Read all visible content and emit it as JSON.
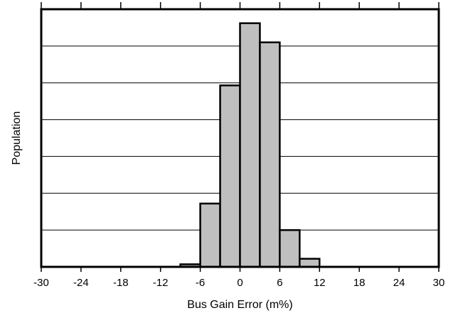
{
  "chart_data": {
    "type": "bar",
    "title": "",
    "xlabel": "Bus Gain Error (m%)",
    "ylabel": "Population",
    "xlim": [
      -30,
      30
    ],
    "ylim": [
      0,
      7
    ],
    "x_ticks": [
      -30,
      -24,
      -18,
      -12,
      -6,
      0,
      6,
      12,
      18,
      24,
      30
    ],
    "x_tick_labels": [
      "-30",
      "-24",
      "-18",
      "-12",
      "-6",
      "0",
      "6",
      "12",
      "18",
      "24",
      "30"
    ],
    "y_gridlines": [
      1,
      2,
      3,
      4,
      5,
      6
    ],
    "grid": "horizontal",
    "bin_width": 3,
    "bins": [
      {
        "start": -9,
        "end": -6,
        "value": 0.07
      },
      {
        "start": -6,
        "end": -3,
        "value": 1.72
      },
      {
        "start": -3,
        "end": 0,
        "value": 4.93
      },
      {
        "start": 0,
        "end": 3,
        "value": 6.62
      },
      {
        "start": 3,
        "end": 6,
        "value": 6.1
      },
      {
        "start": 6,
        "end": 9,
        "value": 1.0
      },
      {
        "start": 9,
        "end": 12,
        "value": 0.22
      }
    ],
    "colors": {
      "bar_fill": "#bfbfbf",
      "bar_stroke": "#000000",
      "grid": "#000000"
    }
  }
}
